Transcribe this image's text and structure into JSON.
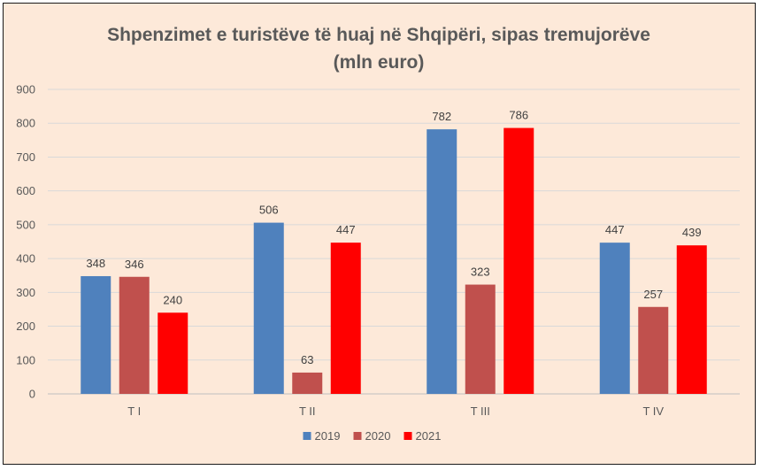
{
  "chart_data": {
    "type": "bar",
    "title": "Shpenzimet e turistëve të huaj në Shqipëri, sipas tremujorëve",
    "subtitle": "(mln euro)",
    "categories": [
      "T I",
      "T II",
      "T III",
      "T IV"
    ],
    "series": [
      {
        "name": "2019",
        "color": "#4f81bd",
        "values": [
          348,
          506,
          782,
          447
        ]
      },
      {
        "name": "2020",
        "color": "#c0504d",
        "values": [
          346,
          63,
          323,
          257
        ]
      },
      {
        "name": "2021",
        "color": "#ff0000",
        "values": [
          240,
          447,
          786,
          439
        ]
      }
    ],
    "ylim": [
      0,
      900
    ],
    "yticks": [
      0,
      100,
      200,
      300,
      400,
      500,
      600,
      700,
      800,
      900
    ],
    "grid": true,
    "legend": "bottom"
  }
}
